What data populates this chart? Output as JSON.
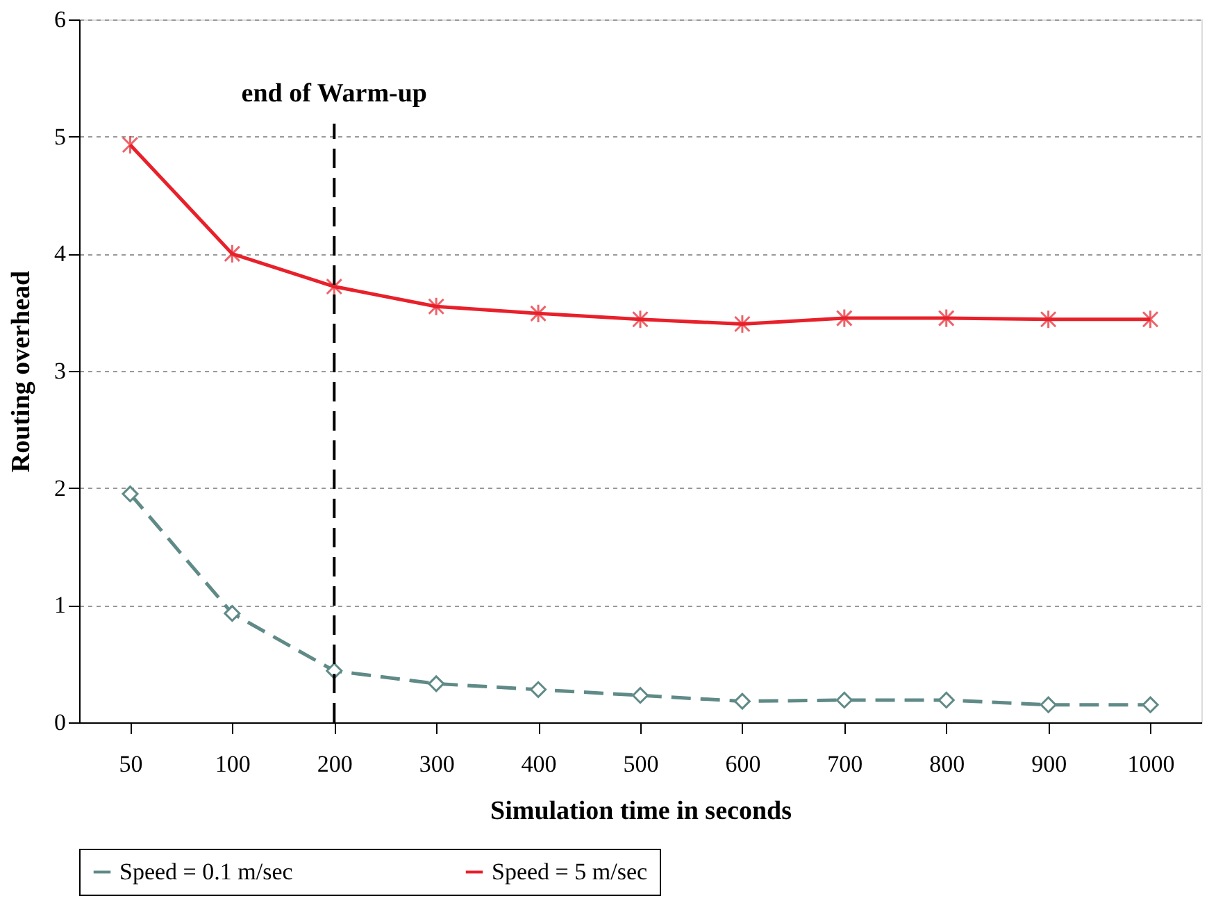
{
  "chart_data": {
    "type": "line",
    "xlabel": "Simulation time in seconds",
    "ylabel": "Routing overhead",
    "categories": [
      "50",
      "100",
      "200",
      "300",
      "400",
      "500",
      "600",
      "700",
      "800",
      "900",
      "1000"
    ],
    "series": [
      {
        "name": "Speed = 0.1 m/sec",
        "color": "#5f8a87",
        "marker": "diamond",
        "line_style": "dashed",
        "values": [
          1.95,
          0.93,
          0.44,
          0.33,
          0.28,
          0.23,
          0.18,
          0.19,
          0.19,
          0.15,
          0.15
        ]
      },
      {
        "name": "Speed = 5 m/sec",
        "color": "#e8202a",
        "marker": "cross",
        "line_style": "solid",
        "values": [
          4.93,
          4.0,
          3.72,
          3.55,
          3.49,
          3.44,
          3.4,
          3.45,
          3.45,
          3.44,
          3.44
        ]
      }
    ],
    "ylim": [
      0,
      6
    ],
    "yticks": [
      0,
      1,
      2,
      3,
      4,
      5,
      6
    ],
    "grid": "y",
    "legend": "bottom",
    "ref_lines": [
      {
        "axis": "x",
        "value": "200",
        "label": "end of Warm-up",
        "color": "#000000",
        "line_style": "dashed"
      }
    ]
  }
}
